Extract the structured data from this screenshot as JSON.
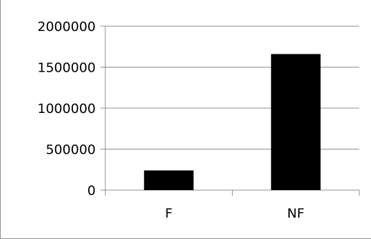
{
  "chart_data": {
    "type": "bar",
    "categories": [
      "F",
      "NF"
    ],
    "values": [
      240000,
      1660000
    ],
    "ylim": [
      0,
      2000000
    ],
    "yticks": [
      0,
      500000,
      1000000,
      1500000,
      2000000
    ],
    "ytick_labels": [
      "0",
      "500000",
      "1000000",
      "1500000",
      "2000000"
    ],
    "grid": true,
    "legend": "none",
    "title": "",
    "xlabel": "",
    "ylabel": ""
  },
  "colors": {
    "bar": "#000000",
    "grid": "#8c8c8c",
    "axis": "#8c8c8c"
  }
}
